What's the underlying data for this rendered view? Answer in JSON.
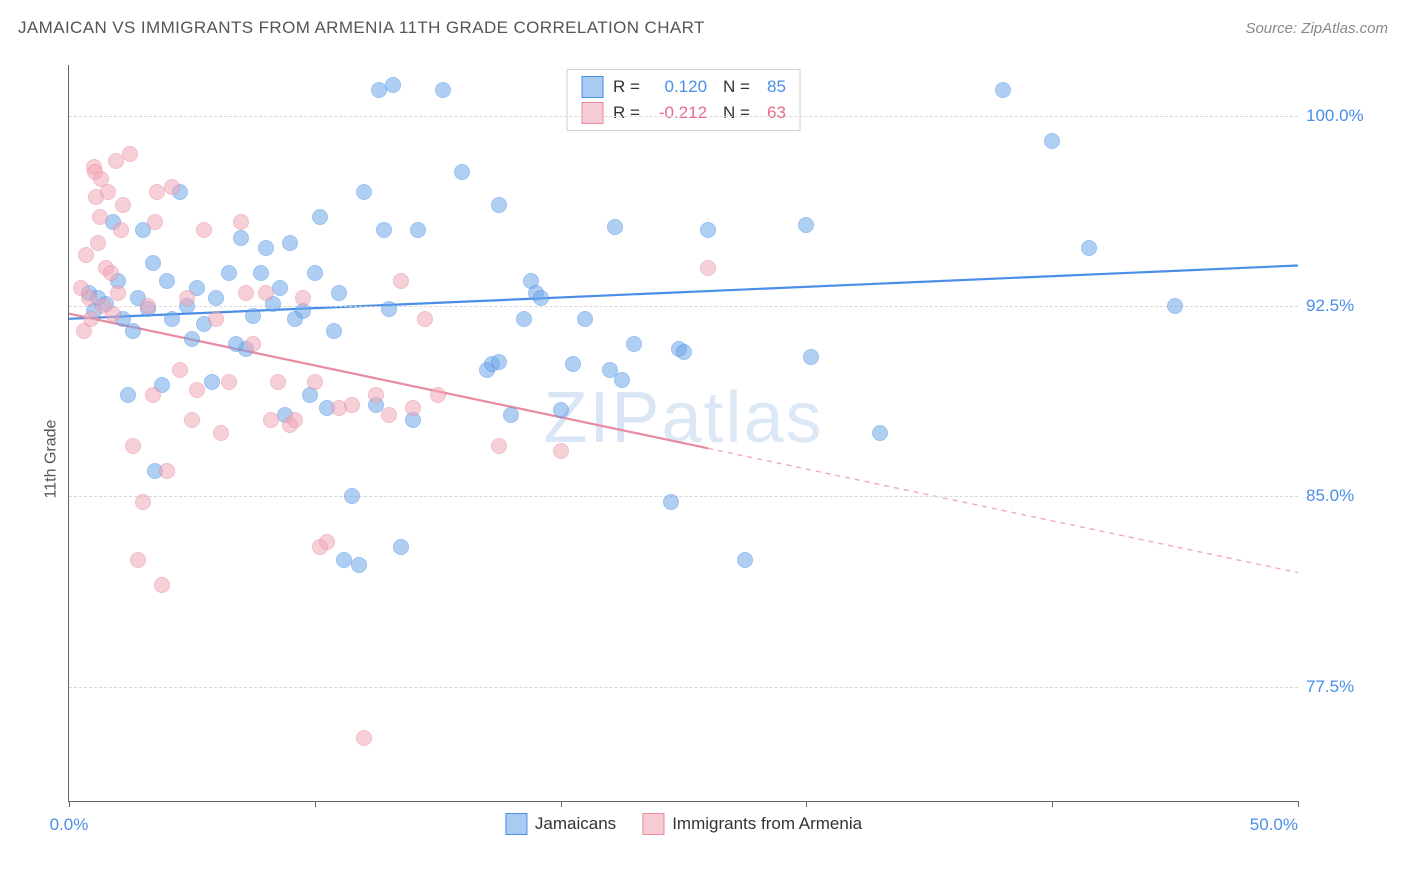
{
  "title": "JAMAICAN VS IMMIGRANTS FROM ARMENIA 11TH GRADE CORRELATION CHART",
  "source": "Source: ZipAtlas.com",
  "y_axis_label": "11th Grade",
  "watermark_a": "ZIP",
  "watermark_b": "atlas",
  "chart": {
    "type": "scatter",
    "background_color": "#ffffff",
    "grid_color": "#d8d8d8",
    "axis_color": "#666666",
    "x_range": [
      0,
      50
    ],
    "y_range": [
      73,
      102
    ],
    "x_ticks": [
      0,
      10,
      20,
      30,
      40,
      50
    ],
    "x_tick_labels": {
      "0": "0.0%",
      "50": "50.0%"
    },
    "y_gridlines": [
      77.5,
      85.0,
      92.5,
      100.0
    ],
    "y_tick_labels": [
      "77.5%",
      "85.0%",
      "92.5%",
      "100.0%"
    ],
    "point_radius": 8,
    "point_opacity": 0.55,
    "series": [
      {
        "name": "Jamaicans",
        "color": "#6fa8e8",
        "border": "#4a8ee8",
        "r": "0.120",
        "r_color": "#4a8ee8",
        "n": "85",
        "trend": {
          "x1": 0,
          "y1": 92.0,
          "x2": 50,
          "y2": 94.1,
          "dash": false,
          "dash_after_x": 50
        },
        "points": [
          [
            1.0,
            92.3
          ],
          [
            0.8,
            93.0
          ],
          [
            1.2,
            92.8
          ],
          [
            1.5,
            92.6
          ],
          [
            2.0,
            93.5
          ],
          [
            2.2,
            92.0
          ],
          [
            2.4,
            89.0
          ],
          [
            2.8,
            92.8
          ],
          [
            3.0,
            95.5
          ],
          [
            3.2,
            92.4
          ],
          [
            3.5,
            86.0
          ],
          [
            3.8,
            89.4
          ],
          [
            4.0,
            93.5
          ],
          [
            4.2,
            92.0
          ],
          [
            4.5,
            97.0
          ],
          [
            5.0,
            91.2
          ],
          [
            5.2,
            93.2
          ],
          [
            5.8,
            89.5
          ],
          [
            6.0,
            92.8
          ],
          [
            6.5,
            93.8
          ],
          [
            7.0,
            95.2
          ],
          [
            7.2,
            90.8
          ],
          [
            7.5,
            92.1
          ],
          [
            8.0,
            94.8
          ],
          [
            8.3,
            92.6
          ],
          [
            8.8,
            88.2
          ],
          [
            9.0,
            95.0
          ],
          [
            9.5,
            92.3
          ],
          [
            10.0,
            93.8
          ],
          [
            10.2,
            96.0
          ],
          [
            10.5,
            88.5
          ],
          [
            11.0,
            93.0
          ],
          [
            11.2,
            82.5
          ],
          [
            11.5,
            85.0
          ],
          [
            11.8,
            82.3
          ],
          [
            12.0,
            97.0
          ],
          [
            12.5,
            88.6
          ],
          [
            12.6,
            101.0
          ],
          [
            12.8,
            95.5
          ],
          [
            13.0,
            92.4
          ],
          [
            13.2,
            101.2
          ],
          [
            13.5,
            83.0
          ],
          [
            14.0,
            88.0
          ],
          [
            14.2,
            95.5
          ],
          [
            15.2,
            101.0
          ],
          [
            16.0,
            97.8
          ],
          [
            17.0,
            90.0
          ],
          [
            17.2,
            90.2
          ],
          [
            17.5,
            96.5
          ],
          [
            17.5,
            90.3
          ],
          [
            18.0,
            88.2
          ],
          [
            18.5,
            92.0
          ],
          [
            18.8,
            93.5
          ],
          [
            19.0,
            93.0
          ],
          [
            19.2,
            92.8
          ],
          [
            20.0,
            88.4
          ],
          [
            20.5,
            90.2
          ],
          [
            21.0,
            92.0
          ],
          [
            22.0,
            90.0
          ],
          [
            22.2,
            95.6
          ],
          [
            22.5,
            89.6
          ],
          [
            23.0,
            91.0
          ],
          [
            24.5,
            84.8
          ],
          [
            24.8,
            90.8
          ],
          [
            25.0,
            90.7
          ],
          [
            26.0,
            95.5
          ],
          [
            27.5,
            82.5
          ],
          [
            30.0,
            95.7
          ],
          [
            30.2,
            90.5
          ],
          [
            33.0,
            87.5
          ],
          [
            38.0,
            101.0
          ],
          [
            40.0,
            99.0
          ],
          [
            41.5,
            94.8
          ],
          [
            45.0,
            92.5
          ],
          [
            1.8,
            95.8
          ],
          [
            2.6,
            91.5
          ],
          [
            3.4,
            94.2
          ],
          [
            4.8,
            92.5
          ],
          [
            5.5,
            91.8
          ],
          [
            6.8,
            91.0
          ],
          [
            7.8,
            93.8
          ],
          [
            8.6,
            93.2
          ],
          [
            9.2,
            92.0
          ],
          [
            9.8,
            89.0
          ],
          [
            10.8,
            91.5
          ]
        ]
      },
      {
        "name": "Immigrants from Armenia",
        "color": "#f2a8b8",
        "border": "#e88aa0",
        "r": "-0.212",
        "r_color": "#e86a8a",
        "n": "63",
        "trend": {
          "x1": 0,
          "y1": 92.2,
          "x2": 50,
          "y2": 82.0,
          "dash": true,
          "dash_after_x": 26
        },
        "points": [
          [
            0.6,
            91.5
          ],
          [
            0.8,
            92.8
          ],
          [
            1.0,
            98.0
          ],
          [
            1.1,
            96.8
          ],
          [
            1.2,
            95.0
          ],
          [
            1.3,
            97.5
          ],
          [
            1.4,
            92.5
          ],
          [
            1.5,
            94.0
          ],
          [
            1.6,
            97.0
          ],
          [
            1.7,
            93.8
          ],
          [
            1.8,
            92.2
          ],
          [
            1.9,
            98.2
          ],
          [
            2.0,
            93.0
          ],
          [
            2.1,
            95.5
          ],
          [
            2.2,
            96.5
          ],
          [
            2.5,
            98.5
          ],
          [
            2.6,
            87.0
          ],
          [
            2.8,
            82.5
          ],
          [
            3.0,
            84.8
          ],
          [
            3.2,
            92.5
          ],
          [
            3.4,
            89.0
          ],
          [
            3.5,
            95.8
          ],
          [
            3.6,
            97.0
          ],
          [
            3.8,
            81.5
          ],
          [
            4.0,
            86.0
          ],
          [
            4.2,
            97.2
          ],
          [
            4.5,
            90.0
          ],
          [
            4.8,
            92.8
          ],
          [
            5.0,
            88.0
          ],
          [
            5.2,
            89.2
          ],
          [
            5.5,
            95.5
          ],
          [
            6.0,
            92.0
          ],
          [
            6.2,
            87.5
          ],
          [
            6.5,
            89.5
          ],
          [
            7.0,
            95.8
          ],
          [
            7.2,
            93.0
          ],
          [
            7.5,
            91.0
          ],
          [
            8.0,
            93.0
          ],
          [
            8.2,
            88.0
          ],
          [
            8.5,
            89.5
          ],
          [
            9.0,
            87.8
          ],
          [
            9.2,
            88.0
          ],
          [
            9.5,
            92.8
          ],
          [
            10.0,
            89.5
          ],
          [
            10.2,
            83.0
          ],
          [
            10.5,
            83.2
          ],
          [
            11.0,
            88.5
          ],
          [
            11.5,
            88.6
          ],
          [
            12.0,
            75.5
          ],
          [
            12.5,
            89.0
          ],
          [
            13.0,
            88.2
          ],
          [
            13.5,
            93.5
          ],
          [
            14.0,
            88.5
          ],
          [
            14.5,
            92.0
          ],
          [
            15.0,
            89.0
          ],
          [
            17.5,
            87.0
          ],
          [
            20.0,
            86.8
          ],
          [
            0.5,
            93.2
          ],
          [
            0.7,
            94.5
          ],
          [
            0.9,
            92.0
          ],
          [
            1.05,
            97.8
          ],
          [
            1.25,
            96.0
          ],
          [
            26.0,
            94.0
          ]
        ]
      }
    ]
  },
  "legend_labels": {
    "r": "R =",
    "n": "N ="
  }
}
